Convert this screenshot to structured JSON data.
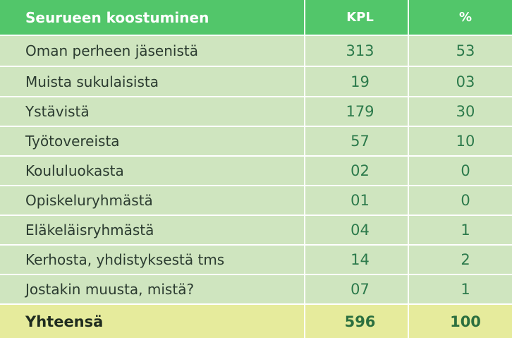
{
  "table": {
    "headers": {
      "label": "Seurueen koostuminen",
      "count": "KPL",
      "percent": "%"
    },
    "rows": [
      {
        "label": "Oman perheen jäsenistä",
        "count": "313",
        "percent": "53"
      },
      {
        "label": "Muista sukulaisista",
        "count": "19",
        "percent": "03"
      },
      {
        "label": "Ystävistä",
        "count": "179",
        "percent": "30"
      },
      {
        "label": "Työtovereista",
        "count": "57",
        "percent": "10"
      },
      {
        "label": "Koululuokasta",
        "count": "02",
        "percent": "0"
      },
      {
        "label": "Opiskeluryhmästä",
        "count": "01",
        "percent": "0"
      },
      {
        "label": "Eläkeläisryhmästä",
        "count": "04",
        "percent": "1"
      },
      {
        "label": "Kerhosta, yhdistyksestä tms",
        "count": "14",
        "percent": "2"
      },
      {
        "label": "Jostakin muusta, mistä?",
        "count": "07",
        "percent": "1"
      }
    ],
    "total": {
      "label": "Yhteensä",
      "count": "596",
      "percent": "100"
    }
  },
  "colors": {
    "header": "#52c66a",
    "body": "#cfe5bf",
    "total": "#e6eb9c",
    "grid": "#ffffff"
  }
}
